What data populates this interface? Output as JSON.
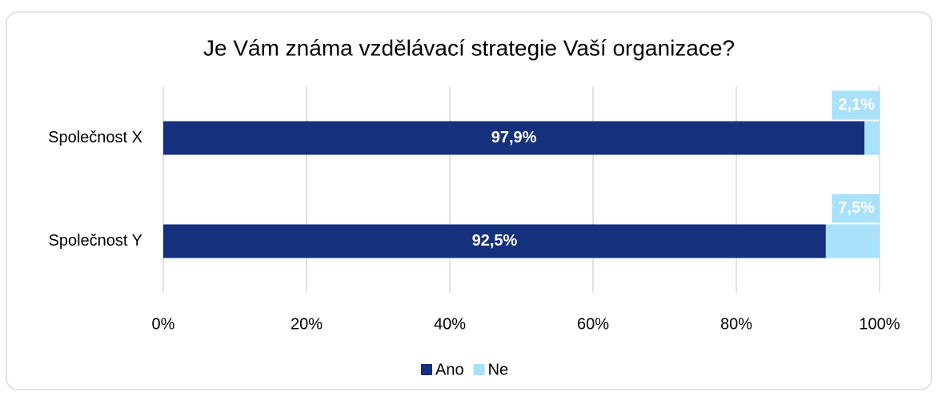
{
  "chart_data": {
    "type": "bar",
    "stacked": true,
    "horizontal": true,
    "title": "Je Vám známa vzdělávací strategie Vaší organizace?",
    "categories": [
      "Společnost X",
      "Společnost Y"
    ],
    "series": [
      {
        "name": "Ano",
        "color": "#15317e",
        "values": [
          97.9,
          92.5
        ],
        "value_labels": [
          "97,9%",
          "92,5%"
        ]
      },
      {
        "name": "Ne",
        "color": "#a9e1fb",
        "values": [
          2.1,
          7.5
        ],
        "value_labels": [
          "2,1%",
          "7,5%"
        ]
      }
    ],
    "xlim": [
      0,
      100
    ],
    "xticks": [
      {
        "value": 0,
        "label": "0%"
      },
      {
        "value": 20,
        "label": "20%"
      },
      {
        "value": 40,
        "label": "40%"
      },
      {
        "value": 60,
        "label": "60%"
      },
      {
        "value": 80,
        "label": "80%"
      },
      {
        "value": 100,
        "label": "100%"
      }
    ],
    "grid": true,
    "legend": "bottom"
  }
}
